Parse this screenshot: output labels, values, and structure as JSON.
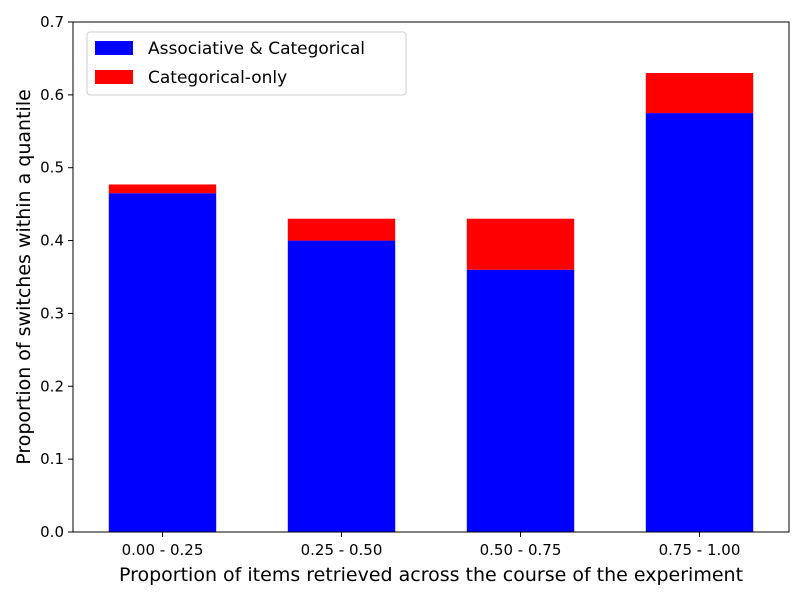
{
  "chart_data": {
    "type": "bar",
    "stacked": true,
    "title": "",
    "xlabel": "Proportion of items retrieved across the course of the experiment",
    "ylabel": "Proportion of switches within a quantile",
    "categories": [
      "0.00 - 0.25",
      "0.25 - 0.50",
      "0.50 - 0.75",
      "0.75 - 1.00"
    ],
    "series": [
      {
        "name": "Associative & Categorical",
        "color": "#0000ff",
        "values": [
          0.465,
          0.4,
          0.36,
          0.575
        ]
      },
      {
        "name": "Categorical-only",
        "color": "#ff0000",
        "values": [
          0.012,
          0.03,
          0.07,
          0.055
        ]
      }
    ],
    "ylim": [
      0,
      0.7
    ],
    "yticks": [
      "0.0",
      "0.1",
      "0.2",
      "0.3",
      "0.4",
      "0.5",
      "0.6",
      "0.7"
    ],
    "grid": false,
    "legend": "top-left"
  }
}
